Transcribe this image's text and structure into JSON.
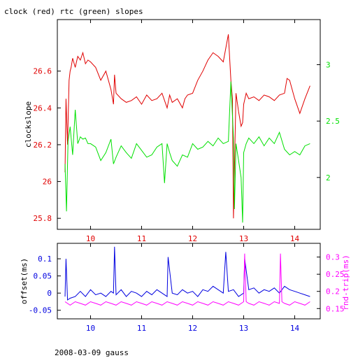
{
  "title": "clock (red) rtc (green) slopes",
  "footer": "2008-03-09 gauss",
  "colors": {
    "red": "#e00000",
    "green": "#00e000",
    "blue": "#0000e0",
    "magenta": "#ff00ff",
    "axis": "#000000"
  },
  "chart_data": [
    {
      "type": "line",
      "title": "clock (red) rtc (green) slopes",
      "ylabel": "clockslope",
      "xlim": [
        9.35,
        14.5
      ],
      "ylim": [
        25.74,
        26.88
      ],
      "y2lim": [
        1.54,
        3.4
      ],
      "x_ticks": [
        10,
        11,
        12,
        13,
        14
      ],
      "y_ticks": [
        25.8,
        26,
        26.2,
        26.4,
        26.6
      ],
      "y2_ticks": [
        2,
        2.5,
        3
      ],
      "series": [
        {
          "name": "clock",
          "axis": "left",
          "color": "#e00000",
          "x": [
            9.5,
            9.52,
            9.55,
            9.58,
            9.6,
            9.62,
            9.65,
            9.7,
            9.75,
            9.8,
            9.85,
            9.9,
            9.95,
            10.0,
            10.1,
            10.2,
            10.3,
            10.4,
            10.45,
            10.47,
            10.5,
            10.6,
            10.7,
            10.8,
            10.9,
            11.0,
            11.1,
            11.2,
            11.3,
            11.4,
            11.5,
            11.55,
            11.6,
            11.7,
            11.8,
            11.85,
            11.9,
            12.0,
            12.1,
            12.2,
            12.25,
            12.3,
            12.4,
            12.5,
            12.6,
            12.7,
            12.75,
            12.78,
            12.8,
            12.85,
            12.9,
            12.95,
            12.98,
            13.0,
            13.05,
            13.1,
            13.2,
            13.3,
            13.4,
            13.5,
            13.6,
            13.7,
            13.8,
            13.85,
            13.9,
            14.0,
            14.1,
            14.2,
            14.3
          ],
          "values": [
            26.05,
            26.45,
            26.2,
            26.55,
            26.6,
            26.62,
            26.67,
            26.62,
            26.68,
            26.66,
            26.7,
            26.64,
            26.66,
            26.65,
            26.62,
            26.55,
            26.6,
            26.5,
            26.42,
            26.58,
            26.48,
            26.45,
            26.43,
            26.44,
            26.46,
            26.42,
            26.47,
            26.44,
            26.45,
            26.48,
            26.4,
            26.47,
            26.43,
            26.45,
            26.4,
            26.45,
            26.47,
            26.48,
            26.55,
            26.6,
            26.63,
            26.66,
            26.7,
            26.68,
            26.65,
            26.8,
            26.55,
            26.45,
            25.8,
            26.48,
            26.38,
            26.3,
            26.32,
            26.42,
            26.48,
            26.45,
            26.46,
            26.44,
            26.47,
            26.46,
            26.44,
            26.47,
            26.48,
            26.56,
            26.55,
            26.45,
            26.37,
            26.45,
            26.52
          ]
        },
        {
          "name": "rtc",
          "axis": "right",
          "color": "#00e000",
          "x": [
            9.5,
            9.53,
            9.56,
            9.6,
            9.65,
            9.7,
            9.75,
            9.8,
            9.85,
            9.9,
            9.95,
            10.0,
            10.1,
            10.2,
            10.3,
            10.4,
            10.45,
            10.5,
            10.6,
            10.7,
            10.8,
            10.9,
            11.0,
            11.1,
            11.2,
            11.3,
            11.4,
            11.45,
            11.5,
            11.55,
            11.6,
            11.7,
            11.8,
            11.9,
            12.0,
            12.1,
            12.2,
            12.3,
            12.4,
            12.5,
            12.6,
            12.7,
            12.75,
            12.8,
            12.82,
            12.85,
            12.9,
            12.95,
            12.98,
            13.0,
            13.05,
            13.1,
            13.2,
            13.3,
            13.4,
            13.5,
            13.6,
            13.7,
            13.8,
            13.9,
            14.0,
            14.1,
            14.2,
            14.3
          ],
          "values": [
            2.12,
            1.7,
            2.32,
            2.45,
            2.2,
            2.6,
            2.3,
            2.36,
            2.34,
            2.35,
            2.3,
            2.3,
            2.27,
            2.15,
            2.22,
            2.34,
            2.12,
            2.18,
            2.28,
            2.22,
            2.17,
            2.3,
            2.24,
            2.18,
            2.2,
            2.27,
            2.3,
            1.95,
            2.3,
            2.22,
            2.15,
            2.1,
            2.2,
            2.18,
            2.3,
            2.25,
            2.27,
            2.32,
            2.28,
            2.35,
            2.3,
            2.32,
            2.85,
            2.35,
            1.72,
            2.3,
            2.15,
            2.0,
            1.6,
            2.22,
            2.3,
            2.35,
            2.3,
            2.36,
            2.28,
            2.35,
            2.3,
            2.4,
            2.25,
            2.2,
            2.23,
            2.2,
            2.28,
            2.3
          ]
        }
      ]
    },
    {
      "type": "line",
      "ylabel": "offset(ms)",
      "y2label": "rnd-trip(ms)",
      "xlim": [
        9.35,
        14.5
      ],
      "ylim": [
        -0.075,
        0.145
      ],
      "y2lim": [
        0.12,
        0.34
      ],
      "x_ticks": [
        10,
        11,
        12,
        13,
        14
      ],
      "y_ticks": [
        -0.05,
        0,
        0.05,
        0.1
      ],
      "y_tick_labels": [
        "-0.05",
        "0",
        "0.05",
        "0.1"
      ],
      "y2_ticks": [
        0.15,
        0.2,
        0.25,
        0.3
      ],
      "series": [
        {
          "name": "offset",
          "axis": "left",
          "color": "#0000e0",
          "x": [
            9.5,
            9.52,
            9.55,
            9.6,
            9.7,
            9.8,
            9.9,
            10.0,
            10.1,
            10.2,
            10.3,
            10.4,
            10.45,
            10.47,
            10.5,
            10.6,
            10.7,
            10.8,
            10.9,
            11.0,
            11.1,
            11.2,
            11.3,
            11.4,
            11.5,
            11.52,
            11.6,
            11.7,
            11.8,
            11.9,
            12.0,
            12.1,
            12.2,
            12.3,
            12.4,
            12.5,
            12.6,
            12.65,
            12.7,
            12.8,
            12.9,
            13.0,
            13.02,
            13.1,
            13.2,
            13.3,
            13.4,
            13.5,
            13.6,
            13.7,
            13.8,
            13.9,
            14.0,
            14.1,
            14.2,
            14.3
          ],
          "values": [
            -0.01,
            0.1,
            -0.02,
            -0.015,
            -0.01,
            0.005,
            -0.01,
            0.01,
            -0.005,
            0.0,
            -0.01,
            0.005,
            0.0,
            0.135,
            -0.005,
            0.01,
            -0.01,
            0.005,
            0.0,
            -0.01,
            0.005,
            -0.005,
            0.01,
            0.0,
            -0.01,
            0.105,
            0.0,
            -0.005,
            0.01,
            0.0,
            0.005,
            -0.01,
            0.01,
            0.005,
            0.02,
            0.01,
            0.0,
            0.12,
            0.005,
            0.01,
            -0.01,
            0.0,
            0.1,
            0.01,
            0.015,
            0.0,
            0.01,
            0.005,
            0.015,
            0.0,
            0.02,
            0.01,
            0.005,
            0.0,
            -0.005,
            -0.01
          ]
        },
        {
          "name": "rnd-trip",
          "axis": "right",
          "color": "#ff00ff",
          "x": [
            9.5,
            9.6,
            9.7,
            9.8,
            9.9,
            10.0,
            10.1,
            10.2,
            10.3,
            10.4,
            10.5,
            10.6,
            10.7,
            10.8,
            10.9,
            11.0,
            11.1,
            11.2,
            11.3,
            11.4,
            11.5,
            11.6,
            11.7,
            11.8,
            11.9,
            12.0,
            12.1,
            12.2,
            12.3,
            12.4,
            12.5,
            12.6,
            12.7,
            12.8,
            12.9,
            13.0,
            13.02,
            13.05,
            13.1,
            13.2,
            13.3,
            13.4,
            13.5,
            13.6,
            13.7,
            13.72,
            13.75,
            13.8,
            13.9,
            14.0,
            14.1,
            14.2,
            14.3
          ],
          "values": [
            0.17,
            0.16,
            0.17,
            0.165,
            0.16,
            0.17,
            0.165,
            0.16,
            0.17,
            0.165,
            0.16,
            0.17,
            0.165,
            0.16,
            0.17,
            0.165,
            0.16,
            0.17,
            0.165,
            0.16,
            0.17,
            0.165,
            0.16,
            0.17,
            0.165,
            0.16,
            0.17,
            0.165,
            0.16,
            0.17,
            0.165,
            0.16,
            0.17,
            0.165,
            0.16,
            0.17,
            0.31,
            0.17,
            0.165,
            0.16,
            0.17,
            0.165,
            0.16,
            0.17,
            0.165,
            0.31,
            0.17,
            0.165,
            0.16,
            0.17,
            0.165,
            0.16,
            0.17
          ]
        }
      ]
    }
  ]
}
